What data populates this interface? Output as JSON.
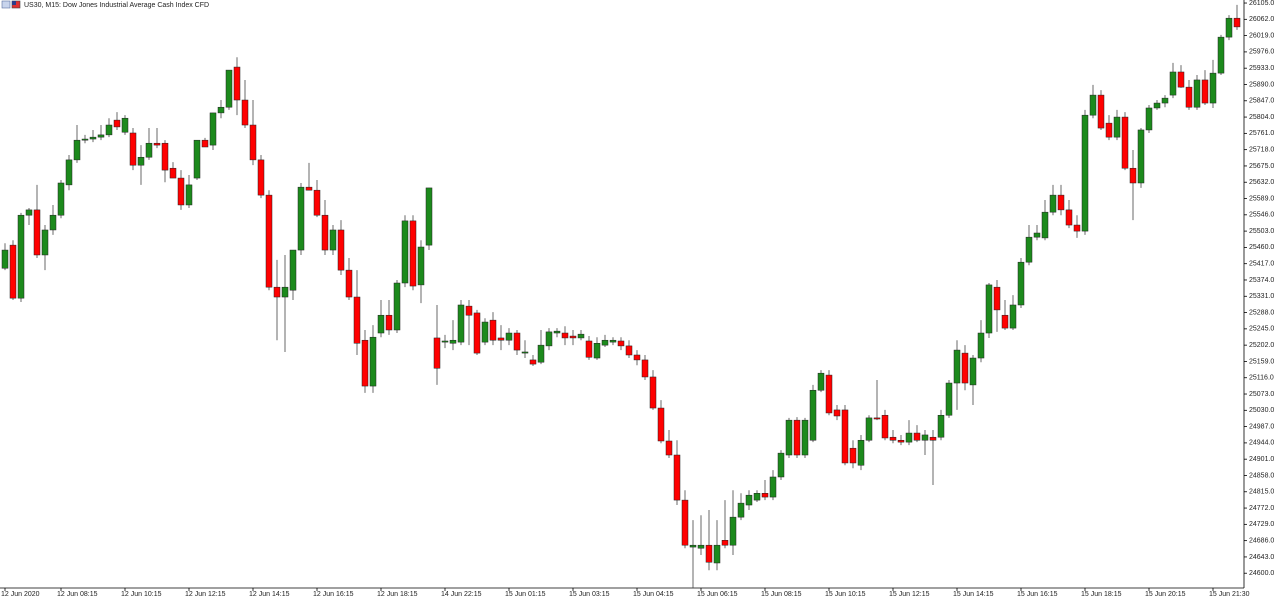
{
  "chart_data": {
    "type": "candlestick",
    "title": "US30, M15:  Dow Jones Industrial Average Cash Index CFD",
    "categories": [
      "12 Jun 2020",
      null,
      null,
      null,
      null,
      null,
      null,
      "12 Jun 08:15",
      null,
      null,
      null,
      null,
      null,
      null,
      null,
      "12 Jun 10:15",
      null,
      null,
      null,
      null,
      null,
      null,
      null,
      "12 Jun 12:15",
      null,
      null,
      null,
      null,
      null,
      null,
      null,
      "12 Jun 14:15",
      null,
      null,
      null,
      null,
      null,
      null,
      null,
      "12 Jun 16:15",
      null,
      null,
      null,
      null,
      null,
      null,
      null,
      "12 Jun 18:15",
      null,
      null,
      null,
      null,
      null,
      null,
      null,
      "14 Jun 22:15",
      null,
      null,
      null,
      null,
      null,
      null,
      null,
      "15 Jun 01:15",
      null,
      null,
      null,
      null,
      null,
      null,
      null,
      "15 Jun 03:15",
      null,
      null,
      null,
      null,
      null,
      null,
      null,
      "15 Jun 04:15",
      null,
      null,
      null,
      null,
      null,
      null,
      null,
      "15 Jun 06:15",
      null,
      null,
      null,
      null,
      null,
      null,
      null,
      "15 Jun 08:15",
      null,
      null,
      null,
      null,
      null,
      null,
      null,
      "15 Jun 10:15",
      null,
      null,
      null,
      null,
      null,
      null,
      null,
      "15 Jun 12:15",
      null,
      null,
      null,
      null,
      null,
      null,
      null,
      "15 Jun 14:15",
      null,
      null,
      null,
      null,
      null,
      null,
      null,
      "15 Jun 16:15",
      null,
      null,
      null,
      null,
      null,
      null,
      null,
      "15 Jun 18:15",
      null,
      null,
      null,
      null,
      null,
      null,
      null,
      "15 Jun 20:15",
      null,
      null,
      null,
      null,
      null,
      null,
      null,
      "15 Jun 21:30",
      null,
      null,
      null
    ],
    "open": [
      25405,
      25466,
      25326,
      25545,
      25559,
      25440,
      25506,
      25545,
      25625,
      25691,
      25743,
      25746,
      25751,
      25757,
      25796,
      25764,
      25762,
      25677,
      25698,
      25735,
      25735,
      25669,
      25643,
      25572,
      25643,
      25743,
      25730,
      25815,
      25830,
      25936,
      25849,
      25783,
      25691,
      25598,
      25355,
      25329,
      25347,
      25453,
      25619,
      25611,
      25545,
      25453,
      25506,
      25400,
      25329,
      25215,
      25094,
      25234,
      25281,
      25242,
      25366,
      25530,
      25361,
      25466,
      25221,
      25210,
      25207,
      25210,
      25305,
      25287,
      25210,
      25268,
      25221,
      25215,
      25234,
      25181,
      25163,
      25157,
      25200,
      25234,
      25234,
      25226,
      25221,
      25213,
      25168,
      25202,
      25210,
      25213,
      25200,
      25176,
      25163,
      25118,
      25036,
      24949,
      24912,
      24793,
      24669,
      24666,
      24674,
      24627,
      24687,
      24674,
      24748,
      24780,
      24793,
      24811,
      24801,
      24854,
      24912,
      25004,
      24912,
      24951,
      25083,
      25123,
      25031,
      25031,
      24930,
      24885,
      24951,
      25010,
      25017,
      24959,
      24951,
      24946,
      24970,
      24951,
      24959,
      24959,
      25017,
      25102,
      25181,
      25097,
      25168,
      25234,
      25355,
      25281,
      25247,
      25308,
      25421,
      25487,
      25485,
      25553,
      25598,
      25559,
      25519,
      25503,
      25809,
      25862,
      25788,
      25751,
      25804,
      25669,
      25630,
      25770,
      25828,
      25841,
      25862,
      25923,
      25883,
      25830,
      25902,
      25841,
      25920,
      26015,
      26065
    ],
    "high": [
      25471,
      25479,
      25551,
      25564,
      25625,
      25519,
      25572,
      25638,
      25704,
      25783,
      25757,
      25770,
      25783,
      25801,
      25817,
      25809,
      25775,
      25730,
      25775,
      25775,
      25743,
      25685,
      25664,
      25651,
      25743,
      25749,
      25815,
      25849,
      25928,
      25962,
      25902,
      25849,
      25704,
      25611,
      25427,
      25440,
      25453,
      25630,
      25683,
      25638,
      25585,
      25519,
      25532,
      25432,
      25400,
      25242,
      25255,
      25321,
      25321,
      25374,
      25545,
      25545,
      25479,
      25617,
      25308,
      25229,
      25268,
      25321,
      25321,
      25295,
      25273,
      25289,
      25255,
      25247,
      25242,
      25215,
      25176,
      25242,
      25247,
      25247,
      25252,
      25242,
      25242,
      25226,
      25223,
      25229,
      25223,
      25223,
      25215,
      25189,
      25176,
      25136,
      25057,
      24978,
      24951,
      24819,
      24740,
      24753,
      24767,
      24740,
      24793,
      24819,
      24811,
      24819,
      24819,
      24846,
      24872,
      24925,
      25010,
      25012,
      25010,
      25097,
      25136,
      25136,
      25044,
      25044,
      24951,
      24965,
      25017,
      25110,
      25031,
      24978,
      24965,
      25004,
      24991,
      24978,
      24978,
      25031,
      25110,
      25215,
      25202,
      25176,
      25268,
      25366,
      25374,
      25321,
      25334,
      25432,
      25519,
      25519,
      25585,
      25625,
      25625,
      25585,
      25545,
      25823,
      25889,
      25875,
      25809,
      25823,
      25817,
      25717,
      25775,
      25836,
      25849,
      25862,
      25947,
      25941,
      25902,
      25915,
      25928,
      25955,
      26021,
      26073,
      26100
    ],
    "low": [
      25400,
      25321,
      25316,
      25519,
      25432,
      25400,
      25493,
      25537,
      25611,
      25683,
      25735,
      25738,
      25743,
      25751,
      25770,
      25757,
      25664,
      25625,
      25691,
      25722,
      25632,
      25643,
      25559,
      25564,
      25638,
      25725,
      25717,
      25801,
      25823,
      25809,
      25775,
      25677,
      25590,
      25347,
      25215,
      25184,
      25321,
      25440,
      25611,
      25540,
      25440,
      25440,
      25387,
      25321,
      25176,
      25076,
      25076,
      25223,
      25229,
      25234,
      25355,
      25347,
      25313,
      25453,
      25097,
      25194,
      25189,
      25202,
      25202,
      25176,
      25202,
      25202,
      25189,
      25202,
      25176,
      25168,
      25147,
      25152,
      25189,
      25223,
      25202,
      25202,
      25215,
      25163,
      25163,
      25197,
      25202,
      25189,
      25168,
      25149,
      25110,
      25031,
      24943,
      24904,
      24780,
      24666,
      24561,
      24648,
      24608,
      24608,
      24666,
      24648,
      24740,
      24767,
      24788,
      24793,
      24793,
      24846,
      24904,
      24904,
      24904,
      24946,
      25078,
      25017,
      25004,
      24885,
      24877,
      24872,
      24946,
      25004,
      24951,
      24943,
      24938,
      24938,
      24946,
      24912,
      24833,
      24951,
      25010,
      25031,
      25083,
      25044,
      25157,
      25221,
      25237,
      25242,
      25242,
      25300,
      25413,
      25479,
      25479,
      25545,
      25545,
      25511,
      25485,
      25493,
      25801,
      25770,
      25743,
      25743,
      25664,
      25532,
      25617,
      25762,
      25823,
      25830,
      25854,
      25881,
      25823,
      25823,
      25836,
      25828,
      25915,
      26007,
      26034
    ],
    "close": [
      25453,
      25326,
      25545,
      25559,
      25440,
      25506,
      25545,
      25630,
      25691,
      25743,
      25746,
      25751,
      25757,
      25783,
      25778,
      25801,
      25677,
      25698,
      25735,
      25730,
      25664,
      25643,
      25572,
      25625,
      25743,
      25725,
      25815,
      25830,
      25928,
      25849,
      25783,
      25691,
      25598,
      25355,
      25329,
      25355,
      25453,
      25619,
      25611,
      25545,
      25453,
      25506,
      25400,
      25329,
      25207,
      25094,
      25223,
      25281,
      25242,
      25366,
      25530,
      25358,
      25461,
      25617,
      25141,
      25213,
      25215,
      25308,
      25281,
      25181,
      25263,
      25215,
      25215,
      25234,
      25189,
      25184,
      25152,
      25202,
      25237,
      25239,
      25221,
      25221,
      25231,
      25170,
      25207,
      25215,
      25215,
      25200,
      25176,
      25163,
      25118,
      25036,
      24949,
      24912,
      24793,
      24674,
      24674,
      24674,
      24629,
      24674,
      24674,
      24748,
      24785,
      24806,
      24811,
      24801,
      24854,
      24917,
      25004,
      24912,
      25004,
      25083,
      25128,
      25023,
      25015,
      24891,
      24891,
      24951,
      25010,
      25007,
      24957,
      24951,
      24946,
      24970,
      24951,
      24965,
      24951,
      25017,
      25102,
      25189,
      25102,
      25168,
      25234,
      25361,
      25295,
      25247,
      25308,
      25421,
      25487,
      25498,
      25553,
      25598,
      25559,
      25519,
      25503,
      25809,
      25862,
      25775,
      25751,
      25804,
      25669,
      25630,
      25770,
      25828,
      25841,
      25854,
      25923,
      25883,
      25830,
      25902,
      25841,
      25920,
      26015,
      26065,
      26042
    ],
    "up_color": "#1c8a1c",
    "down_color": "#ff0000",
    "ylim": [
      24561,
      26113
    ],
    "yticks": [
      {
        "value": 26105,
        "label": "26105.0"
      },
      {
        "value": 26062,
        "label": "26062.0"
      },
      {
        "value": 26019,
        "label": "26019.0"
      },
      {
        "value": 25976,
        "label": "25976.0"
      },
      {
        "value": 25933,
        "label": "25933.0"
      },
      {
        "value": 25890,
        "label": "25890.0"
      },
      {
        "value": 25847,
        "label": "25847.0"
      },
      {
        "value": 25804,
        "label": "25804.0"
      },
      {
        "value": 25761,
        "label": "25761.0"
      },
      {
        "value": 25718,
        "label": "25718.0"
      },
      {
        "value": 25675,
        "label": "25675.0"
      },
      {
        "value": 25632,
        "label": "25632.0"
      },
      {
        "value": 25589,
        "label": "25589.0"
      },
      {
        "value": 25546,
        "label": "25546.0"
      },
      {
        "value": 25503,
        "label": "25503.0"
      },
      {
        "value": 25460,
        "label": "25460.0"
      },
      {
        "value": 25417,
        "label": "25417.0"
      },
      {
        "value": 25374,
        "label": "25374.0"
      },
      {
        "value": 25331,
        "label": "25331.0"
      },
      {
        "value": 25288,
        "label": "25288.0"
      },
      {
        "value": 25245,
        "label": "25245.0"
      },
      {
        "value": 25202,
        "label": "25202.0"
      },
      {
        "value": 25159,
        "label": "25159.0"
      },
      {
        "value": 25116,
        "label": "25116.0"
      },
      {
        "value": 25073,
        "label": "25073.0"
      },
      {
        "value": 25030,
        "label": "25030.0"
      },
      {
        "value": 24987,
        "label": "24987.0"
      },
      {
        "value": 24944,
        "label": "24944.0"
      },
      {
        "value": 24901,
        "label": "24901.0"
      },
      {
        "value": 24858,
        "label": "24858.0"
      },
      {
        "value": 24815,
        "label": "24815.0"
      },
      {
        "value": 24772,
        "label": "24772.0"
      },
      {
        "value": 24729,
        "label": "24729.0"
      },
      {
        "value": 24686,
        "label": "24686.0"
      },
      {
        "value": 24643,
        "label": "24643.0"
      },
      {
        "value": 24600,
        "label": "24600.0"
      }
    ]
  }
}
